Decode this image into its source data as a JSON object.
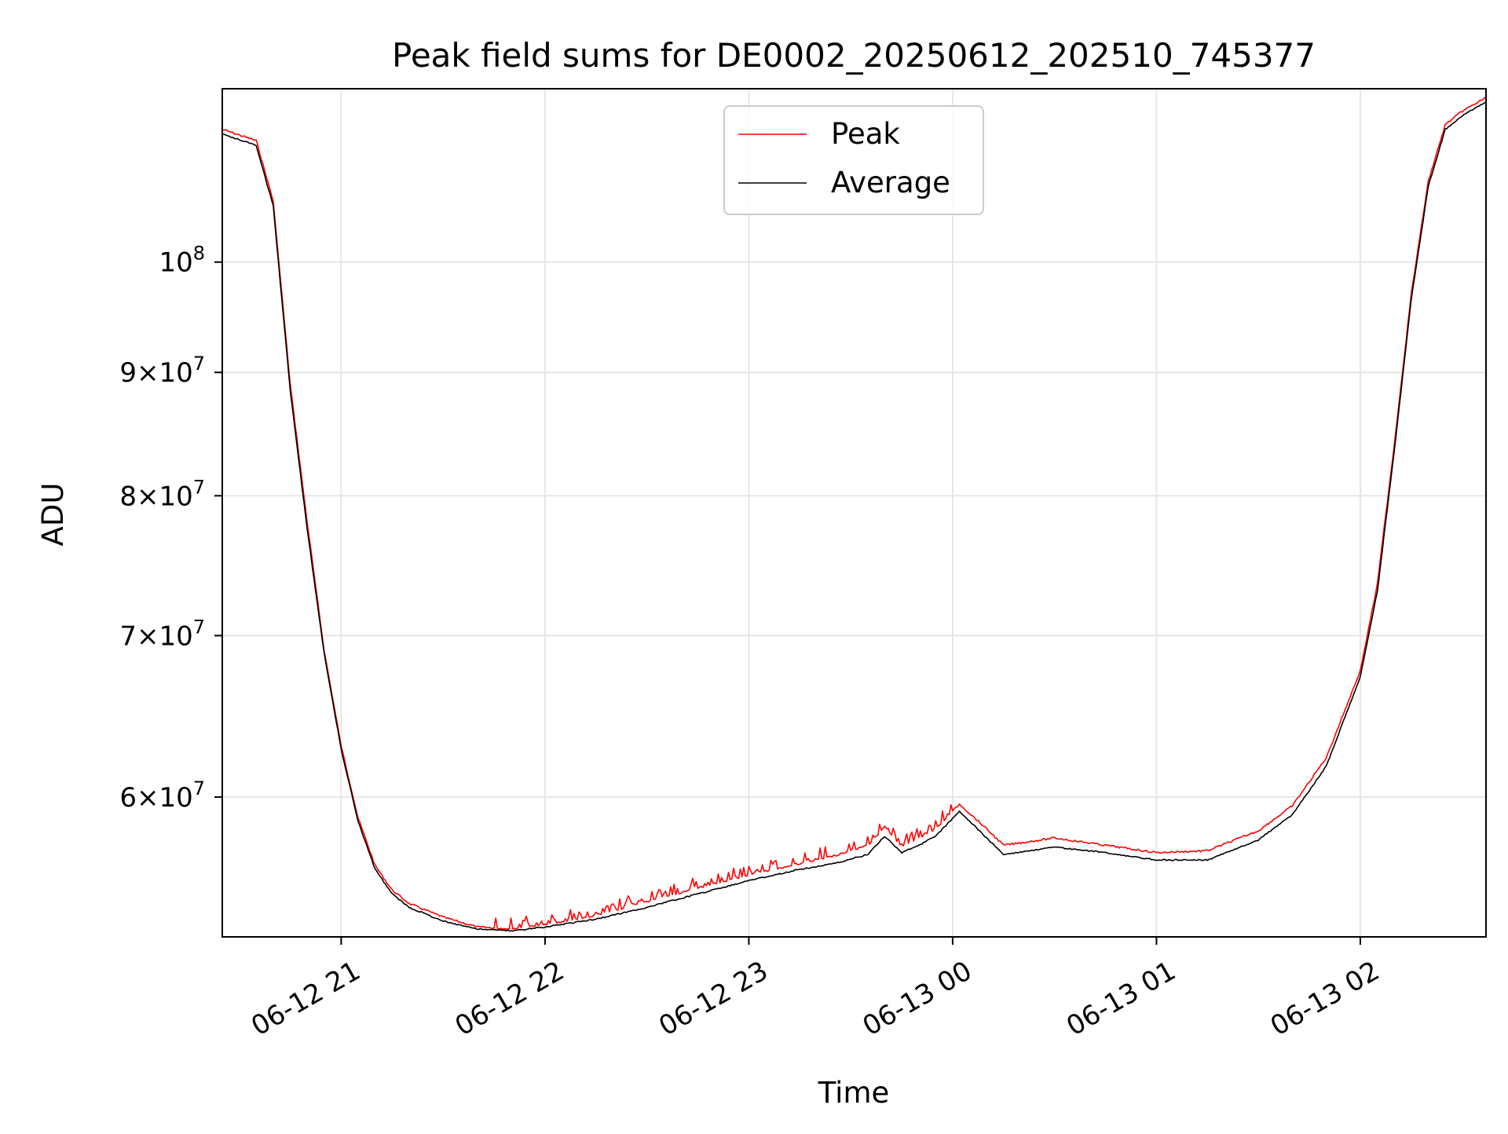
{
  "chart_data": {
    "type": "line",
    "title": "Peak field sums for DE0002_20250612_202510_745377",
    "xlabel": "Time",
    "ylabel": "ADU",
    "y_scale": "log",
    "grid": true,
    "legend_position": "upper center",
    "xlim": [
      "2025-06-12 20:25",
      "2025-06-13 02:37"
    ],
    "ylim": [
      52500000,
      118000000
    ],
    "x_ticks": [
      "06-12 21",
      "06-12 22",
      "06-12 23",
      "06-13 00",
      "06-13 01",
      "06-13 02"
    ],
    "y_ticks": [
      {
        "value": 100000000,
        "mantissa": "",
        "exponent": "8",
        "base": "10"
      },
      {
        "value": 90000000,
        "mantissa": "9",
        "exponent": "7",
        "base": "10"
      },
      {
        "value": 80000000,
        "mantissa": "8",
        "exponent": "7",
        "base": "10"
      },
      {
        "value": 70000000,
        "mantissa": "7",
        "exponent": "7",
        "base": "10"
      },
      {
        "value": 60000000,
        "mantissa": "6",
        "exponent": "7",
        "base": "10"
      }
    ],
    "x": [
      "2025-06-12 20:25",
      "2025-06-12 20:35",
      "2025-06-12 20:40",
      "2025-06-12 20:45",
      "2025-06-12 20:50",
      "2025-06-12 20:55",
      "2025-06-12 21:00",
      "2025-06-12 21:05",
      "2025-06-12 21:10",
      "2025-06-12 21:15",
      "2025-06-12 21:20",
      "2025-06-12 21:30",
      "2025-06-12 21:40",
      "2025-06-12 21:50",
      "2025-06-12 22:00",
      "2025-06-12 22:15",
      "2025-06-12 22:30",
      "2025-06-12 22:45",
      "2025-06-12 23:00",
      "2025-06-12 23:15",
      "2025-06-12 23:25",
      "2025-06-12 23:35",
      "2025-06-12 23:40",
      "2025-06-12 23:45",
      "2025-06-12 23:50",
      "2025-06-12 23:55",
      "2025-06-13 00:02",
      "2025-06-13 00:10",
      "2025-06-13 00:15",
      "2025-06-13 00:30",
      "2025-06-13 00:45",
      "2025-06-13 01:00",
      "2025-06-13 01:15",
      "2025-06-13 01:30",
      "2025-06-13 01:40",
      "2025-06-13 01:50",
      "2025-06-13 02:00",
      "2025-06-13 02:05",
      "2025-06-13 02:10",
      "2025-06-13 02:15",
      "2025-06-13 02:20",
      "2025-06-13 02:25",
      "2025-06-13 02:30",
      "2025-06-13 02:37"
    ],
    "series": [
      {
        "name": "Peak",
        "color": "#ff0000",
        "values": [
          113500000,
          112300000,
          106000000,
          89000000,
          78000000,
          69000000,
          63000000,
          58800000,
          56200000,
          54900000,
          54200000,
          53500000,
          53000000,
          52900000,
          53100000,
          53600000,
          54300000,
          55000000,
          55700000,
          56300000,
          56700000,
          57300000,
          58300000,
          57200000,
          57700000,
          58200000,
          59600000,
          58200000,
          57300000,
          57700000,
          57300000,
          56900000,
          57000000,
          58100000,
          59500000,
          62300000,
          67700000,
          73500000,
          84000000,
          97000000,
          108000000,
          114000000,
          115500000,
          117000000
        ]
      },
      {
        "name": "Average",
        "color": "#000000",
        "values": [
          113000000,
          111800000,
          105500000,
          88500000,
          77500000,
          68800000,
          62800000,
          58600000,
          56000000,
          54700000,
          54000000,
          53300000,
          52900000,
          52800000,
          53000000,
          53400000,
          54000000,
          54700000,
          55400000,
          56000000,
          56300000,
          56800000,
          57800000,
          56900000,
          57300000,
          57800000,
          59200000,
          57700000,
          56800000,
          57200000,
          56900000,
          56500000,
          56500000,
          57600000,
          59000000,
          61800000,
          67300000,
          73000000,
          83500000,
          96500000,
          107500000,
          113500000,
          115000000,
          116500000
        ]
      }
    ]
  }
}
